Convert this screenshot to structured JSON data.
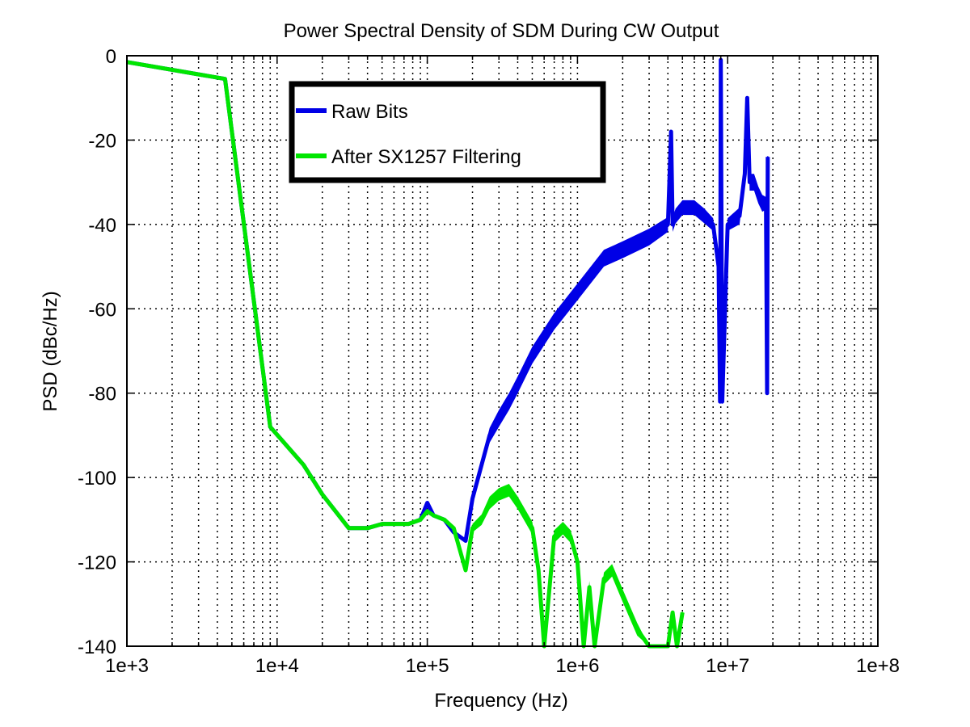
{
  "chart_data": {
    "type": "line",
    "title": "Power Spectral Density of SDM During CW Output",
    "xlabel": "Frequency (Hz)",
    "ylabel": "PSD (dBc/Hz)",
    "x_scale": "log",
    "xlim": [
      1000,
      100000000
    ],
    "ylim": [
      -140,
      0
    ],
    "x_ticks": [
      1000,
      10000,
      100000,
      1000000,
      10000000,
      100000000
    ],
    "x_tick_labels": [
      "1e+3",
      "1e+4",
      "1e+5",
      "1e+6",
      "1e+7",
      "1e+8"
    ],
    "y_ticks": [
      0,
      -20,
      -40,
      -60,
      -80,
      -100,
      -120,
      -140
    ],
    "y_tick_labels": [
      "0",
      "-20",
      "-40",
      "-60",
      "-80",
      "-100",
      "-120",
      "-140"
    ],
    "grid": true,
    "legend_position": "top-center",
    "series": [
      {
        "name": "Raw Bits",
        "color": "#0000e6",
        "x": [
          1000,
          4500,
          9000,
          15000,
          20000,
          30000,
          40000,
          50000,
          60000,
          75000,
          90000,
          100000,
          110000,
          130000,
          150000,
          180000,
          200000,
          230000,
          260000,
          300000,
          350000,
          400000,
          500000,
          700000,
          1000000,
          1500000,
          2000000,
          3000000,
          4000000,
          4200000,
          4300000,
          4500000,
          5000000,
          6000000,
          7000000,
          8000000,
          8700000,
          8900000,
          9000000,
          9200000,
          10000000,
          12000000,
          13000000,
          13500000,
          14000000,
          15000000,
          16000000,
          17000000,
          18000000,
          18300000,
          18500000
        ],
        "y": [
          -1.5,
          -5.5,
          -88,
          -97,
          -104,
          -112,
          -112,
          -111,
          -111,
          -111,
          -110,
          -106,
          -109,
          -110,
          -113,
          -115,
          -105,
          -97,
          -90,
          -86,
          -82,
          -78,
          -71,
          -63,
          -56,
          -48,
          -46,
          -43,
          -40,
          -18,
          -40,
          -38,
          -36,
          -36,
          -38,
          -40,
          -50,
          -82,
          -1,
          -82,
          -40,
          -38,
          -28,
          -10,
          -30,
          -30,
          -33,
          -35,
          -35,
          -80,
          -24
        ],
        "band": [
          0,
          0,
          0,
          0,
          0,
          0,
          0,
          0,
          0,
          0,
          0,
          0,
          0,
          0,
          0,
          0,
          1.5,
          2.5,
          3.5,
          4,
          4,
          4,
          4,
          4,
          4,
          4,
          4,
          4,
          3.5,
          0,
          3.5,
          3.5,
          3.5,
          3.5,
          3.5,
          3,
          2,
          0,
          0,
          0,
          3,
          4,
          4,
          0,
          4,
          4,
          4,
          4,
          3,
          0,
          0
        ]
      },
      {
        "name": "After SX1257 Filtering",
        "color": "#00e600",
        "x": [
          1000,
          4500,
          9000,
          15000,
          20000,
          30000,
          40000,
          50000,
          60000,
          75000,
          90000,
          100000,
          110000,
          130000,
          150000,
          180000,
          200000,
          230000,
          260000,
          300000,
          350000,
          400000,
          500000,
          550000,
          600000,
          700000,
          800000,
          900000,
          1000000,
          1100000,
          1200000,
          1300000,
          1500000,
          1700000,
          2000000,
          2500000,
          3000000,
          3500000,
          4000000,
          4300000,
          4600000,
          5000000
        ],
        "y": [
          -1.5,
          -5.5,
          -88,
          -97,
          -104,
          -112,
          -112,
          -111,
          -111,
          -111,
          -110,
          -108,
          -109,
          -110,
          -112,
          -122,
          -112,
          -110,
          -106,
          -104,
          -103,
          -106,
          -112,
          -122,
          -140,
          -114,
          -112,
          -114,
          -120,
          -140,
          -126,
          -140,
          -124,
          -122,
          -128,
          -136,
          -140,
          -140,
          -140,
          -132,
          -140,
          -132
        ],
        "band": [
          0,
          0,
          0,
          0,
          0,
          0,
          0,
          0,
          0,
          0,
          0,
          0,
          0,
          0,
          0,
          0,
          2,
          2.5,
          3,
          3,
          3,
          3,
          3,
          3,
          0,
          3,
          3,
          3,
          3,
          0,
          3,
          0,
          3,
          3,
          3,
          3,
          0,
          0,
          0,
          0,
          0,
          0
        ]
      }
    ]
  }
}
